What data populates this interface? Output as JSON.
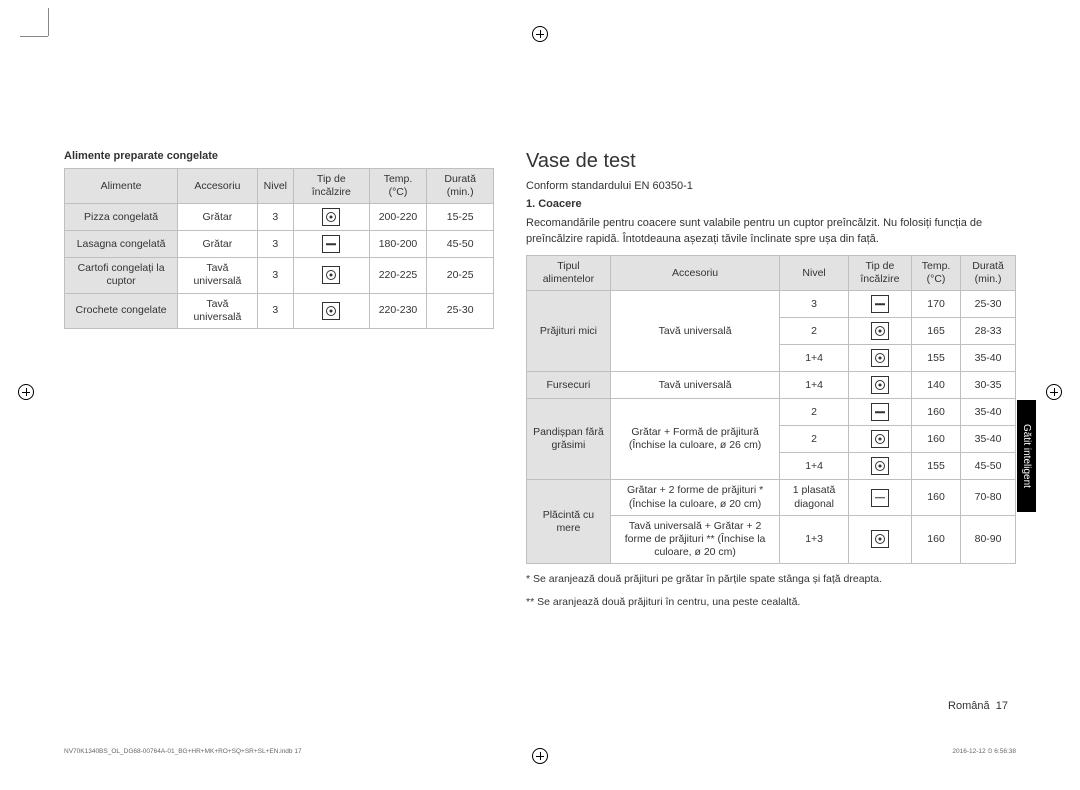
{
  "cropmarks": true,
  "left": {
    "heading": "Alimente preparate congelate",
    "columns": [
      "Alimente",
      "Accesoriu",
      "Nivel",
      "Tip de încălzire",
      "Temp. (°C)",
      "Durată (min.)"
    ],
    "rows": [
      {
        "food": "Pizza congelată",
        "acc": "Grătar",
        "level": "3",
        "icon": "fan",
        "temp": "200-220",
        "dur": "15-25"
      },
      {
        "food": "Lasagna congelată",
        "acc": "Grătar",
        "level": "3",
        "icon": "line",
        "temp": "180-200",
        "dur": "45-50"
      },
      {
        "food": "Cartofi congelați la cuptor",
        "acc": "Tavă universală",
        "level": "3",
        "icon": "fan",
        "temp": "220-225",
        "dur": "20-25"
      },
      {
        "food": "Crochete congelate",
        "acc": "Tavă universală",
        "level": "3",
        "icon": "fan",
        "temp": "220-230",
        "dur": "25-30"
      }
    ]
  },
  "right": {
    "title": "Vase de test",
    "standard": "Conform standardului EN 60350-1",
    "sub_heading": "1. Coacere",
    "intro": "Recomandările pentru coacere sunt valabile pentru un cuptor preîncălzit. Nu folosiți funcția de preîncălzire rapidă. Întotdeauna așezați tăvile înclinate spre ușa din față.",
    "columns": [
      "Tipul alimentelor",
      "Accesoriu",
      "Nivel",
      "Tip de încălzire",
      "Temp. (°C)",
      "Durată (min.)"
    ],
    "rows": [
      {
        "food": "Prăjituri mici",
        "foodspan": 3,
        "acc": "Tavă universală",
        "accspan": 3,
        "level": "3",
        "icon": "line",
        "temp": "170",
        "dur": "25-30"
      },
      {
        "level": "2",
        "icon": "fan",
        "temp": "165",
        "dur": "28-33"
      },
      {
        "level": "1+4",
        "icon": "fan",
        "temp": "155",
        "dur": "35-40"
      },
      {
        "food": "Fursecuri",
        "foodspan": 1,
        "acc": "Tavă universală",
        "accspan": 1,
        "level": "1+4",
        "icon": "fan",
        "temp": "140",
        "dur": "30-35"
      },
      {
        "food": "Pandișpan fără grăsimi",
        "foodspan": 3,
        "acc": "Grătar + Formă de prăjitură (Închise la culoare, ø 26 cm)",
        "accspan": 3,
        "level": "2",
        "icon": "line",
        "temp": "160",
        "dur": "35-40"
      },
      {
        "level": "2",
        "icon": "fan",
        "temp": "160",
        "dur": "35-40"
      },
      {
        "level": "1+4",
        "icon": "fan",
        "temp": "155",
        "dur": "45-50"
      },
      {
        "food": "Plăcintă cu mere",
        "foodspan": 2,
        "acc": "Grătar + 2 forme de prăjituri * (Închise la culoare, ø 20 cm)",
        "accspan": 1,
        "level": "1 plasată diagonal",
        "icon": "line",
        "temp": "160",
        "dur": "70-80"
      },
      {
        "acc": "Tavă universală + Grătar + 2 forme de prăjituri ** (Închise la culoare, ø 20 cm)",
        "accspan": 1,
        "level": "1+3",
        "icon": "fan",
        "temp": "160",
        "dur": "80-90"
      }
    ],
    "note1": "* Se aranjează două prăjituri pe grătar în părțile spate stânga și față dreapta.",
    "note2": "** Se aranjează două prăjituri în centru, una peste cealaltă."
  },
  "side_tab": "Gătit inteligent",
  "footer_lang": "Română",
  "footer_page": "17",
  "footer_file": "NV70K1340BS_OL_DG68-00764A-01_BG+HR+MK+RO+SQ+SR+SL+EN.indb   17",
  "footer_date": "2016-12-12   ⏲ 6:56:38"
}
